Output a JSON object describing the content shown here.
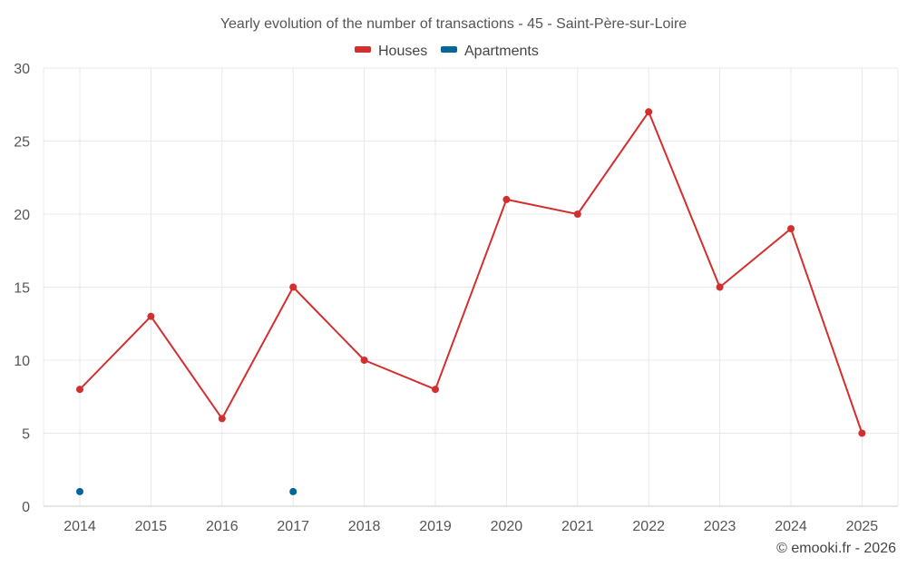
{
  "chart_data": {
    "type": "line",
    "title": "Yearly evolution of the number of transactions - 45 - Saint-Père-sur-Loire",
    "categories": [
      "2014",
      "2015",
      "2016",
      "2017",
      "2018",
      "2019",
      "2020",
      "2021",
      "2022",
      "2023",
      "2024",
      "2025"
    ],
    "series": [
      {
        "name": "Houses",
        "color": "#d32f2f",
        "values": [
          8,
          13,
          6,
          15,
          10,
          8,
          21,
          20,
          27,
          15,
          19,
          5
        ]
      },
      {
        "name": "Apartments",
        "color": "#006699",
        "values": [
          1,
          null,
          null,
          1,
          null,
          null,
          null,
          null,
          null,
          null,
          null,
          null
        ]
      }
    ],
    "ylim": [
      0,
      30
    ],
    "yticks": [
      "0",
      "5",
      "10",
      "15",
      "20",
      "25",
      "30"
    ],
    "grid": true,
    "legend_position": "top-center",
    "xlabel": "",
    "ylabel": ""
  },
  "credit": "© emooki.fr - 2026"
}
